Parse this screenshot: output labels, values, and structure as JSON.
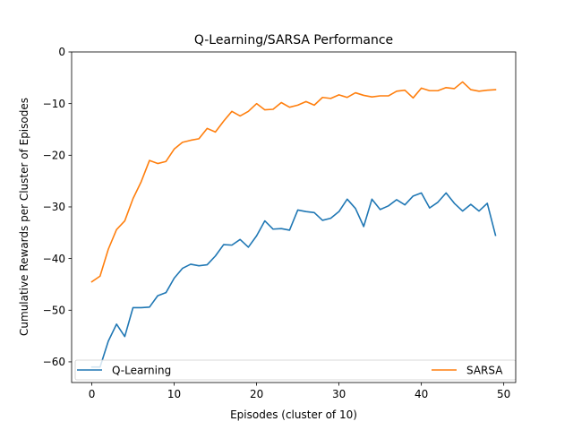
{
  "chart_data": {
    "type": "line",
    "title": "Q-Learning/SARSA Performance",
    "xlabel": "Episodes (cluster of 10)",
    "ylabel": "Cumulative Rewards per Cluster of Episodes",
    "xlim": [
      -2.45,
      51.45
    ],
    "ylim": [
      -64,
      0
    ],
    "xticks": [
      0,
      10,
      20,
      30,
      40,
      50
    ],
    "yticks": [
      -60,
      -50,
      -40,
      -30,
      -20,
      -10,
      0
    ],
    "grid": false,
    "legend": "bottom",
    "x": [
      0,
      1,
      2,
      3,
      4,
      5,
      6,
      7,
      8,
      9,
      10,
      11,
      12,
      13,
      14,
      15,
      16,
      17,
      18,
      19,
      20,
      21,
      22,
      23,
      24,
      25,
      26,
      27,
      28,
      29,
      30,
      31,
      32,
      33,
      34,
      35,
      36,
      37,
      38,
      39,
      40,
      41,
      42,
      43,
      44,
      45,
      46,
      47,
      48,
      49
    ],
    "series": [
      {
        "name": "Q-Learning",
        "color": "#1f77b4",
        "values": [
          -61.0,
          -61.0,
          -56.0,
          -52.7,
          -55.1,
          -49.5,
          -49.5,
          -49.4,
          -47.2,
          -46.6,
          -43.8,
          -41.9,
          -41.1,
          -41.4,
          -41.2,
          -39.5,
          -37.3,
          -37.4,
          -36.3,
          -37.8,
          -35.6,
          -32.7,
          -34.3,
          -34.2,
          -34.5,
          -30.6,
          -30.9,
          -31.1,
          -32.6,
          -32.2,
          -30.9,
          -28.5,
          -30.3,
          -33.8,
          -28.5,
          -30.5,
          -29.8,
          -28.6,
          -29.6,
          -27.9,
          -27.3,
          -30.2,
          -29.1,
          -27.3,
          -29.3,
          -30.8,
          -29.5,
          -30.8,
          -29.3,
          -35.5
        ]
      },
      {
        "name": "SARSA",
        "color": "#ff7f0e",
        "values": [
          -44.5,
          -43.4,
          -38.2,
          -34.4,
          -32.7,
          -28.4,
          -25.1,
          -21.0,
          -21.6,
          -21.2,
          -18.8,
          -17.5,
          -17.1,
          -16.8,
          -14.8,
          -15.5,
          -13.4,
          -11.5,
          -12.4,
          -11.5,
          -10.0,
          -11.2,
          -11.1,
          -9.8,
          -10.7,
          -10.3,
          -9.6,
          -10.3,
          -8.8,
          -9.0,
          -8.3,
          -8.8,
          -7.9,
          -8.4,
          -8.7,
          -8.5,
          -8.5,
          -7.6,
          -7.4,
          -8.9,
          -7.0,
          -7.5,
          -7.5,
          -6.9,
          -7.1,
          -5.8,
          -7.3,
          -7.6,
          -7.4,
          -7.3
        ]
      }
    ]
  }
}
